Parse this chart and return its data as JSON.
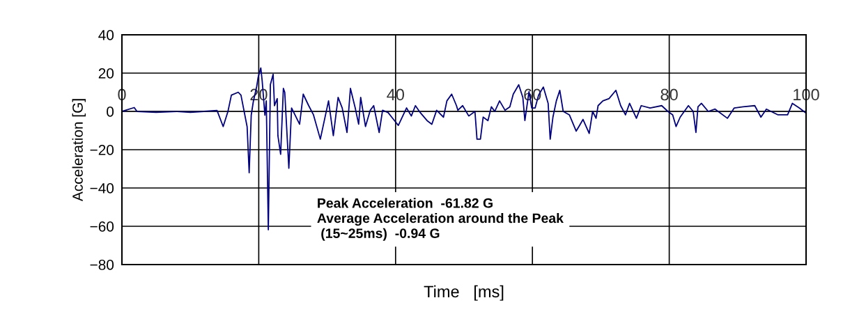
{
  "chart_data": {
    "type": "line",
    "xlabel": "Time   [ms]",
    "ylabel": "Acceleration [G]",
    "xlim": [
      0,
      100
    ],
    "xticks": [
      0,
      20,
      40,
      60,
      80,
      100
    ],
    "ylim": [
      -80,
      40
    ],
    "yticks": [
      -80,
      -60,
      -40,
      -20,
      0,
      20,
      40
    ],
    "grid": true,
    "marker": "none",
    "line_style": "solid",
    "annotations": [
      "Peak Acceleration  -61.82 G\nAverage Acceleration around the Peak\n (15~25ms)  -0.94 G"
    ],
    "series": [
      {
        "color": "#000080",
        "x": [
          0,
          1.8,
          2.2,
          5,
          8,
          10,
          12,
          13.9,
          14.8,
          15.5,
          16,
          17,
          17.4,
          18.3,
          18.6,
          18.9,
          19.2,
          19.7,
          19.9,
          20.3,
          20.5,
          20.9,
          21.1,
          21.4,
          21.7,
          22.1,
          22.3,
          22.7,
          22.8,
          23.2,
          23.6,
          23.8,
          24.4,
          24.8,
          25.97,
          26.5,
          27.3,
          28.0,
          29.0,
          30.2,
          30.9,
          31.6,
          32.2,
          32.9,
          33.4,
          34.1,
          34.6,
          34.9,
          35.6,
          36.3,
          36.8,
          37.6,
          38.1,
          38.9,
          39.7,
          40.4,
          41.6,
          42.3,
          42.9,
          43.6,
          44.6,
          45.3,
          46.0,
          47.0,
          47.5,
          48.2,
          48.9,
          49.1,
          49.8,
          50.7,
          51.6,
          51.9,
          52.4,
          52.8,
          53.5,
          54.0,
          54.5,
          55.2,
          56.0,
          56.7,
          57.2,
          58.0,
          58.6,
          58.9,
          59.5,
          59.9,
          60.4,
          60.9,
          61.6,
          62.3,
          62.6,
          63.0,
          63.5,
          64.0,
          64.5,
          65.4,
          66.4,
          66.9,
          67.4,
          68.3,
          68.8,
          69.3,
          69.6,
          70.3,
          71.2,
          72.2,
          72.9,
          73.6,
          74.2,
          75.2,
          75.9,
          77.2,
          78.9,
          79.8,
          80.5,
          81.0,
          81.6,
          82.8,
          83.5,
          83.9,
          84.2,
          84.7,
          85.7,
          86.7,
          88.5,
          89.5,
          90.8,
          92.5,
          93.4,
          94.2,
          95.9,
          97.3,
          98.0,
          99.0,
          99.9
        ],
        "values": [
          0,
          2,
          0,
          -0.5,
          0,
          -0.5,
          0,
          0.5,
          -7.9,
          0,
          8.5,
          10,
          8.5,
          -8,
          -32,
          -2,
          5,
          13,
          17.6,
          22.7,
          16,
          -2,
          5.5,
          -61.8,
          14,
          19.4,
          3,
          6.7,
          -12.7,
          -22.4,
          12,
          10,
          -29.7,
          1.8,
          -6.7,
          9,
          3,
          -1.8,
          -14.5,
          5.5,
          -12.7,
          7.3,
          1.8,
          -11,
          12,
          1.8,
          -6.7,
          7.3,
          -7.9,
          0.6,
          3,
          -11,
          0.6,
          -0.6,
          -4.2,
          -7.3,
          1.8,
          -2.4,
          3,
          -0.6,
          -4.8,
          -6.7,
          0.6,
          -3,
          5.5,
          9,
          3,
          0.6,
          3,
          -2.4,
          0,
          -14.5,
          -14.5,
          -3,
          -4.8,
          2.4,
          0,
          5.5,
          0.6,
          2.4,
          9,
          13.9,
          7.3,
          -4.8,
          10.3,
          1.8,
          1.8,
          8.5,
          12.7,
          4.2,
          -14.5,
          -3,
          5.5,
          11,
          0,
          -1.8,
          -10.3,
          -7.3,
          -4.2,
          -11.5,
          0,
          -3.6,
          3,
          5.5,
          6.7,
          11,
          3,
          -1.8,
          4.2,
          -3.6,
          3,
          1.8,
          3,
          0,
          -1.8,
          -7.9,
          -3,
          3,
          0,
          -11,
          2.4,
          4.2,
          0,
          1.2,
          -3.6,
          1.8,
          2.4,
          3,
          -3,
          1.2,
          -1.8,
          -1.8,
          4.2,
          1.8,
          -0.6
        ]
      }
    ]
  }
}
